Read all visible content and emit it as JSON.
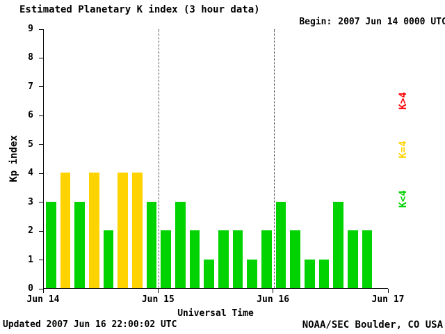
{
  "title": "Estimated Planetary K index (3 hour data)",
  "begin": {
    "label": "Begin:",
    "value": "2007 Jun 14 0000 UTC"
  },
  "footer": {
    "updated": "Updated 2007 Jun 16 22:00:02 UTC",
    "source": "NOAA/SEC Boulder, CO USA"
  },
  "chart_data": {
    "type": "bar",
    "title": "Estimated Planetary K index (3 hour data)",
    "xlabel": "Universal Time",
    "ylabel": "Kp index",
    "ylim": [
      0,
      9
    ],
    "y_ticks": [
      0,
      1,
      2,
      3,
      4,
      5,
      6,
      7,
      8,
      9
    ],
    "x_tick_labels": [
      "Jun 14",
      "Jun 15",
      "Jun 16",
      "Jun 17"
    ],
    "bar_interval_hours": 3,
    "bars_per_day": 8,
    "start": "2007 Jun 14 0000 UTC",
    "values": [
      3,
      4,
      3,
      4,
      2,
      4,
      4,
      3,
      2,
      3,
      2,
      1,
      2,
      2,
      1,
      2,
      3,
      2,
      1,
      1,
      3,
      2,
      2
    ],
    "colors": {
      "k_lt_4": "#00d300",
      "k_eq_4": "#ffd300",
      "k_gt_4": "#ff0000"
    },
    "legend": [
      {
        "label": "K>4",
        "color": "#ff0000"
      },
      {
        "label": "K=4",
        "color": "#ffd300"
      },
      {
        "label": "K<4",
        "color": "#00d300"
      }
    ],
    "gridlines": {
      "vertical_dotted_at": [
        "Jun 15",
        "Jun 16"
      ],
      "horizontal": false
    },
    "legend_position": "right-rotated"
  }
}
